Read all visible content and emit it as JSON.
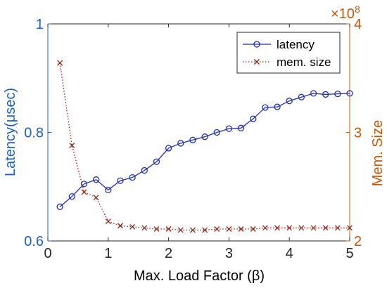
{
  "chart_data": {
    "type": "line",
    "xlabel": "Max. Load Factor (β)",
    "ylabel_left": "Latency(μsec)",
    "ylabel_right": "Mem. Size",
    "right_multiplier": "×10",
    "right_multiplier_exp": "8",
    "xlim": [
      0,
      5
    ],
    "ylim_left": [
      0.6,
      1.0
    ],
    "ylim_right": [
      2,
      4
    ],
    "x_ticks": [
      0,
      1,
      2,
      3,
      4,
      5
    ],
    "x_tick_labels": [
      "0",
      "1",
      "2",
      "3",
      "4",
      "5"
    ],
    "left_ticks": [
      0.6,
      0.8,
      1.0
    ],
    "left_tick_labels": [
      "0.6",
      "0.8",
      "1"
    ],
    "right_ticks": [
      2,
      3,
      4
    ],
    "right_tick_labels": [
      "2",
      "3",
      "4"
    ],
    "grid": false,
    "legend_position": "top-right",
    "colors": {
      "left_axis": "#1f5fd0",
      "right_axis": "#d35400",
      "latency": "#1f2fbf",
      "mem": "#c01010",
      "mem_marker": "#8b2a1a"
    },
    "x": [
      0.2,
      0.4,
      0.6,
      0.8,
      1.0,
      1.2,
      1.4,
      1.6,
      1.8,
      2.0,
      2.2,
      2.4,
      2.6,
      2.8,
      3.0,
      3.2,
      3.4,
      3.6,
      3.8,
      4.0,
      4.2,
      4.4,
      4.6,
      4.8,
      5.0
    ],
    "series": [
      {
        "name": "latency",
        "axis": "left",
        "marker": "circle",
        "line": "solid",
        "values": [
          0.663,
          0.682,
          0.705,
          0.713,
          0.694,
          0.711,
          0.717,
          0.73,
          0.746,
          0.771,
          0.78,
          0.786,
          0.792,
          0.8,
          0.807,
          0.808,
          0.825,
          0.846,
          0.847,
          0.858,
          0.865,
          0.872,
          0.87,
          0.871,
          0.872
        ]
      },
      {
        "name": "mem. size",
        "axis": "right",
        "marker": "x",
        "line": "dotted",
        "values": [
          3.64,
          2.88,
          2.45,
          2.4,
          2.18,
          2.14,
          2.13,
          2.12,
          2.11,
          2.11,
          2.1,
          2.1,
          2.1,
          2.11,
          2.11,
          2.11,
          2.11,
          2.12,
          2.12,
          2.12,
          2.12,
          2.12,
          2.12,
          2.12,
          2.12
        ]
      }
    ]
  }
}
